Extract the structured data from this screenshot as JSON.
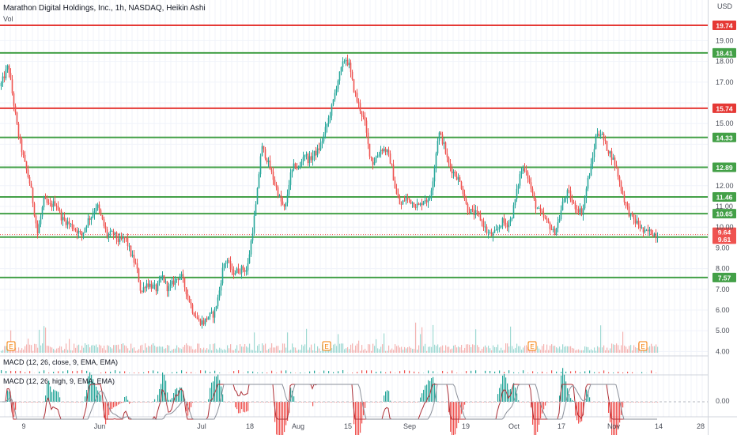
{
  "header": {
    "title": "Marathon Digital Holdings, Inc., 1h, NASDAQ, Heikin Ashi",
    "vol_label": "Vol",
    "currency": "USD"
  },
  "macd_panels": [
    {
      "label": "MACD (12, 26, close, 9, EMA, EMA)"
    },
    {
      "label": "MACD (12, 26, high, 9, EMA, EMA)",
      "zero_label": "0.00"
    }
  ],
  "colors": {
    "up": "#26a69a",
    "down": "#ef5350",
    "support": "#43a047",
    "resistance": "#e53935",
    "grid": "#f0f3fa"
  },
  "earnings_marker": "E",
  "chart_data": {
    "type": "candlestick",
    "title": "Marathon Digital Holdings, Inc., 1h, NASDAQ, Heikin Ashi",
    "ylim": [
      3.9,
      20.2
    ],
    "y_ticks": [
      "19.00",
      "18.00",
      "17.00",
      "16.00",
      "15.00",
      "14.00",
      "13.00",
      "12.00",
      "11.00",
      "10.00",
      "9.00",
      "8.00",
      "7.00",
      "6.00",
      "5.00",
      "4.00"
    ],
    "x_labels": [
      "9",
      "Jun",
      "Jul",
      "18",
      "Aug",
      "15",
      "Sep",
      "19",
      "Oct",
      "17",
      "Nov",
      "14",
      "28"
    ],
    "horizontal_levels": [
      {
        "value": 19.74,
        "label": "19.74",
        "kind": "resistance"
      },
      {
        "value": 18.41,
        "label": "18.41",
        "kind": "support"
      },
      {
        "value": 15.74,
        "label": "15.74",
        "kind": "resistance"
      },
      {
        "value": 14.33,
        "label": "14.33",
        "kind": "support"
      },
      {
        "value": 12.89,
        "label": "12.89",
        "kind": "support"
      },
      {
        "value": 11.46,
        "label": "11.46",
        "kind": "support"
      },
      {
        "value": 10.65,
        "label": "10.65",
        "kind": "support"
      },
      {
        "value": 9.52,
        "label": "9.52",
        "kind": "support"
      },
      {
        "value": 7.57,
        "label": "7.57",
        "kind": "support"
      }
    ],
    "price_tags": [
      {
        "value": 9.64,
        "label": "9.64"
      },
      {
        "value": 9.61,
        "label": "9.61"
      }
    ],
    "price_path": [
      [
        0,
        16.8
      ],
      [
        5,
        17.3
      ],
      [
        10,
        17.8
      ],
      [
        16,
        16.2
      ],
      [
        22,
        14.6
      ],
      [
        30,
        13.2
      ],
      [
        38,
        12.0
      ],
      [
        47,
        9.7
      ],
      [
        55,
        11.3
      ],
      [
        62,
        11.0
      ],
      [
        70,
        11.2
      ],
      [
        78,
        10.4
      ],
      [
        86,
        10.2
      ],
      [
        95,
        9.9
      ],
      [
        103,
        9.6
      ],
      [
        110,
        10.3
      ],
      [
        116,
        10.6
      ],
      [
        122,
        11.1
      ],
      [
        128,
        10.4
      ],
      [
        135,
        9.6
      ],
      [
        143,
        9.7
      ],
      [
        150,
        9.3
      ],
      [
        158,
        9.5
      ],
      [
        166,
        8.6
      ],
      [
        172,
        8.1
      ],
      [
        178,
        6.8
      ],
      [
        184,
        7.3
      ],
      [
        190,
        7.2
      ],
      [
        197,
        7.0
      ],
      [
        205,
        7.6
      ],
      [
        212,
        7.0
      ],
      [
        220,
        7.4
      ],
      [
        228,
        7.7
      ],
      [
        236,
        6.8
      ],
      [
        243,
        6.0
      ],
      [
        250,
        5.5
      ],
      [
        257,
        5.4
      ],
      [
        263,
        5.7
      ],
      [
        270,
        5.8
      ],
      [
        276,
        6.7
      ],
      [
        282,
        8.2
      ],
      [
        287,
        8.4
      ],
      [
        293,
        7.8
      ],
      [
        300,
        7.9
      ],
      [
        306,
        8.0
      ],
      [
        312,
        7.9
      ],
      [
        318,
        9.6
      ],
      [
        324,
        11.3
      ],
      [
        330,
        13.9
      ],
      [
        336,
        13.4
      ],
      [
        342,
        12.7
      ],
      [
        348,
        12.0
      ],
      [
        354,
        11.3
      ],
      [
        360,
        10.8
      ],
      [
        366,
        12.4
      ],
      [
        372,
        13.0
      ],
      [
        378,
        12.8
      ],
      [
        384,
        13.6
      ],
      [
        390,
        13.2
      ],
      [
        396,
        13.5
      ],
      [
        402,
        13.7
      ],
      [
        408,
        14.3
      ],
      [
        414,
        15.1
      ],
      [
        420,
        15.9
      ],
      [
        426,
        17.0
      ],
      [
        431,
        17.6
      ],
      [
        436,
        18.2
      ],
      [
        441,
        17.8
      ],
      [
        446,
        16.8
      ],
      [
        451,
        16.1
      ],
      [
        456,
        15.6
      ],
      [
        461,
        15.0
      ],
      [
        466,
        13.7
      ],
      [
        471,
        13.1
      ],
      [
        476,
        13.4
      ],
      [
        482,
        13.8
      ],
      [
        488,
        13.7
      ],
      [
        494,
        13.1
      ],
      [
        500,
        11.7
      ],
      [
        506,
        11.0
      ],
      [
        512,
        11.4
      ],
      [
        518,
        11.3
      ],
      [
        524,
        11.1
      ],
      [
        530,
        11.0
      ],
      [
        536,
        11.4
      ],
      [
        542,
        11.2
      ],
      [
        548,
        12.6
      ],
      [
        554,
        14.6
      ],
      [
        560,
        14.1
      ],
      [
        566,
        13.1
      ],
      [
        572,
        12.7
      ],
      [
        578,
        12.4
      ],
      [
        584,
        11.9
      ],
      [
        590,
        10.9
      ],
      [
        597,
        10.7
      ],
      [
        604,
        10.6
      ],
      [
        610,
        10.2
      ],
      [
        616,
        9.7
      ],
      [
        622,
        9.6
      ],
      [
        628,
        9.8
      ],
      [
        634,
        10.3
      ],
      [
        640,
        10.1
      ],
      [
        646,
        10.4
      ],
      [
        652,
        11.5
      ],
      [
        658,
        12.7
      ],
      [
        664,
        12.9
      ],
      [
        670,
        12.0
      ],
      [
        676,
        11.1
      ],
      [
        682,
        10.7
      ],
      [
        688,
        10.4
      ],
      [
        694,
        10.1
      ],
      [
        700,
        9.7
      ],
      [
        706,
        10.3
      ],
      [
        712,
        11.3
      ],
      [
        718,
        11.7
      ],
      [
        724,
        11.1
      ],
      [
        730,
        10.9
      ],
      [
        736,
        10.7
      ],
      [
        742,
        12.1
      ],
      [
        748,
        13.1
      ],
      [
        754,
        14.6
      ],
      [
        760,
        14.5
      ],
      [
        766,
        13.9
      ],
      [
        772,
        13.5
      ],
      [
        778,
        13.0
      ],
      [
        784,
        12.0
      ],
      [
        790,
        11.2
      ],
      [
        796,
        10.6
      ],
      [
        802,
        10.3
      ],
      [
        808,
        10.1
      ],
      [
        814,
        9.7
      ],
      [
        820,
        9.8
      ],
      [
        826,
        9.7
      ],
      [
        831,
        9.6
      ]
    ]
  }
}
